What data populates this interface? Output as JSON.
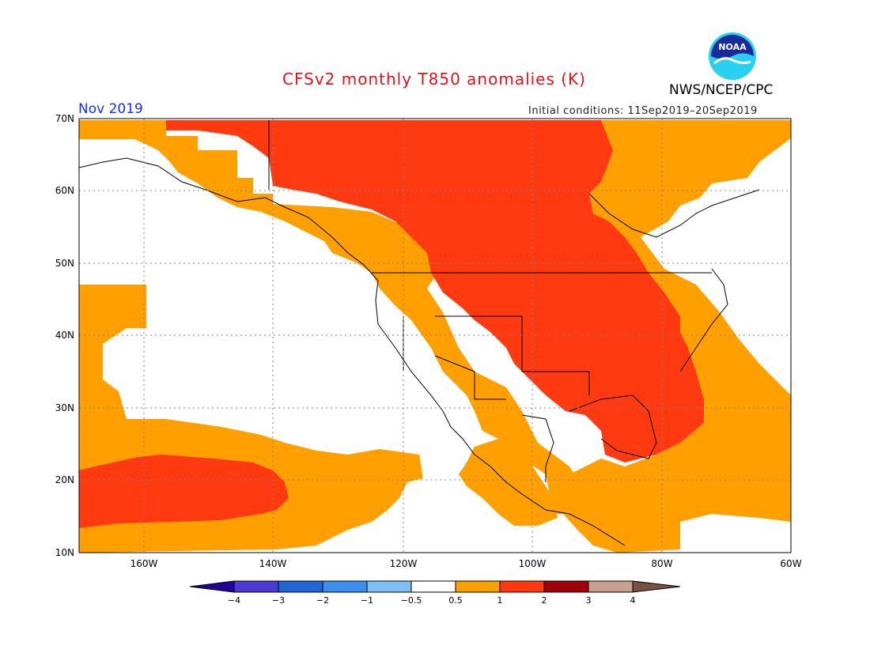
{
  "header": {
    "title": "CFSv2 monthly T850 anomalies (K)",
    "agency": "NWS/NCEP/CPC",
    "logo_text": "NOAA",
    "target_month": "Nov 2019",
    "initial_conditions": "Initial conditions: 11Sep2019–20Sep2019"
  },
  "map": {
    "lat_labels": [
      "70N",
      "60N",
      "50N",
      "40N",
      "30N",
      "20N",
      "10N"
    ],
    "lon_labels": [
      "160W",
      "140W",
      "120W",
      "100W",
      "80W",
      "60W"
    ],
    "gridlines": "dotted"
  },
  "legend": {
    "tick_labels": [
      "−4",
      "−3",
      "−2",
      "−1",
      "−0.5",
      "0.5",
      "1",
      "2",
      "3",
      "4"
    ],
    "colors": [
      "#220099",
      "#4d3ad6",
      "#1f66d8",
      "#3a90ee",
      "#7fbff8",
      "#ffffff",
      "#ffa000",
      "#ff3a10",
      "#a00008",
      "#c8a090",
      "#7a5040"
    ]
  },
  "colors": {
    "anomaly_0_5_to_1": "#ffa000",
    "anomaly_1_to_2": "#ff3a10",
    "title": "#e8101a",
    "month": "#1a2cf0"
  }
}
